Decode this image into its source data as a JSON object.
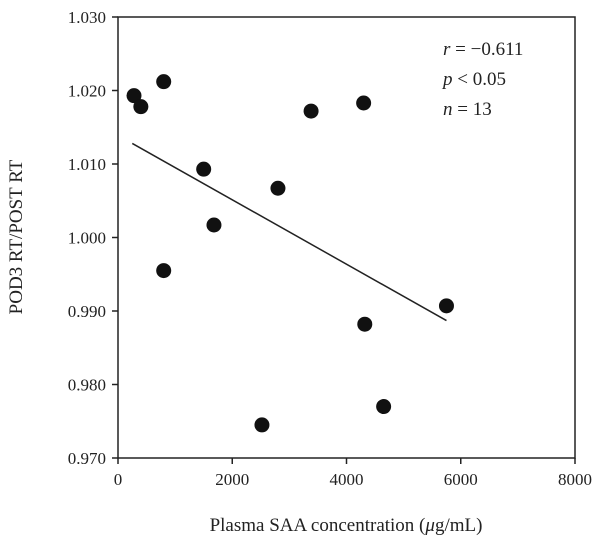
{
  "chart_data": {
    "type": "scatter",
    "xlabel_prefix": "Plasma SAA concentration (",
    "xlabel_mu": "μ",
    "xlabel_suffix": "g/mL)",
    "ylabel": "POD3 RT/POST RT",
    "xlim": [
      0,
      8000
    ],
    "ylim": [
      0.97,
      1.03
    ],
    "xticks": [
      0,
      2000,
      4000,
      6000,
      8000
    ],
    "xtick_labels": [
      "0",
      "2000",
      "4000",
      "6000",
      "8000"
    ],
    "yticks": [
      0.97,
      0.98,
      0.99,
      1.0,
      1.01,
      1.02,
      1.03
    ],
    "ytick_labels": [
      "0.970",
      "0.980",
      "0.990",
      "1.000",
      "1.010",
      "1.020",
      "1.030"
    ],
    "grid": false,
    "points": [
      {
        "x": 280,
        "y": 1.0193
      },
      {
        "x": 400,
        "y": 1.0178
      },
      {
        "x": 800,
        "y": 1.0212
      },
      {
        "x": 800,
        "y": 0.9955
      },
      {
        "x": 1500,
        "y": 1.0093
      },
      {
        "x": 1680,
        "y": 1.0017
      },
      {
        "x": 2520,
        "y": 0.9745
      },
      {
        "x": 2800,
        "y": 1.0067
      },
      {
        "x": 3380,
        "y": 1.0172
      },
      {
        "x": 4300,
        "y": 1.0183
      },
      {
        "x": 4320,
        "y": 0.9882
      },
      {
        "x": 4650,
        "y": 0.977
      },
      {
        "x": 5750,
        "y": 0.9907
      }
    ],
    "regression_line": {
      "x": [
        250,
        5750
      ],
      "y": [
        1.0128,
        0.9887
      ]
    },
    "annotations": {
      "r_var": "r",
      "r_rest": " = −0.611",
      "p_var": "p",
      "p_rest": " < 0.05",
      "n_var": "n",
      "n_rest": " = 13"
    }
  }
}
